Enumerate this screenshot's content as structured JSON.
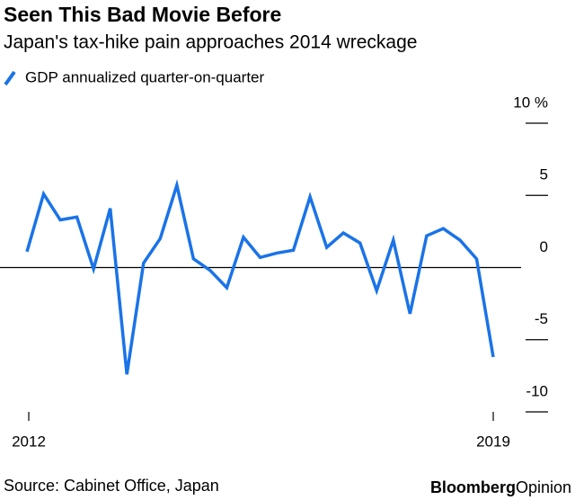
{
  "chart_data": {
    "type": "line",
    "title": "Seen This Bad Movie Before",
    "subtitle": "Japan's tax-hike pain approaches 2014 wreckage",
    "source": "Source: Cabinet Office, Japan",
    "brand": [
      "Bloomberg",
      "Opinion"
    ],
    "categories": [
      "2012",
      null,
      null,
      null,
      null,
      null,
      null,
      null,
      null,
      null,
      null,
      null,
      null,
      null,
      null,
      null,
      null,
      null,
      null,
      null,
      null,
      null,
      null,
      null,
      null,
      null,
      null,
      null,
      "2019"
    ],
    "series": [
      {
        "name": "GDP annualized quarter-on-quarter",
        "color": "#1a73e8",
        "values": [
          1.1,
          5.1,
          3.3,
          3.5,
          -0.1,
          4.1,
          -7.4,
          0.3,
          2.0,
          5.7,
          0.6,
          -0.2,
          -1.4,
          2.1,
          0.7,
          1.0,
          1.2,
          4.9,
          1.4,
          2.4,
          1.7,
          -1.6,
          1.9,
          -3.2,
          2.2,
          2.7,
          1.9,
          0.6,
          -6.2
        ]
      }
    ],
    "ylim": [
      -10,
      10
    ],
    "yticks": [
      -10,
      -5,
      0,
      5,
      {
        "value": 10,
        "label": "10 %"
      }
    ],
    "axis_side": "right"
  }
}
